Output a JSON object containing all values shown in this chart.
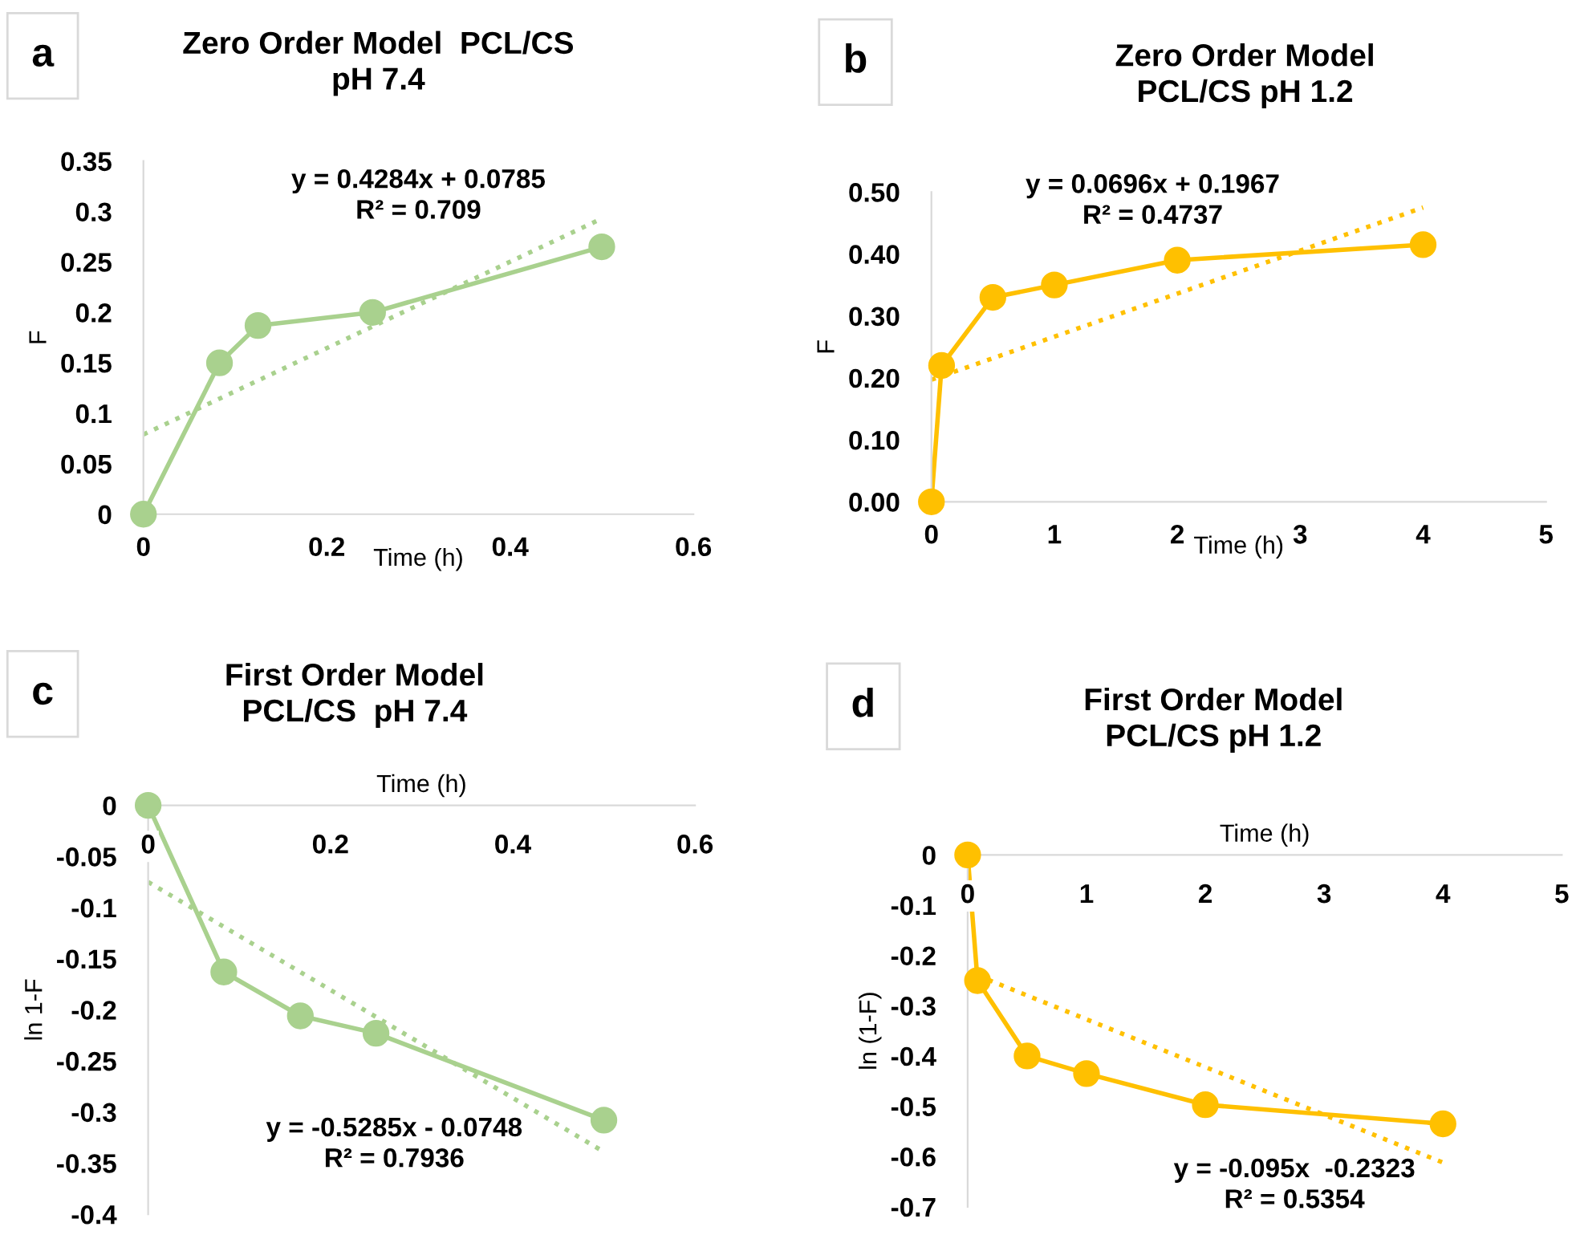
{
  "chart_data": [
    {
      "type": "line",
      "title": "Zero Order Model  PCL/CS\npH 7.4",
      "xlabel": "Time (h)",
      "ylabel": "F",
      "annotations": [
        "a",
        "y = 0.4284x + 0.0785\nR² = 0.709"
      ],
      "x": [
        0,
        0.083,
        0.125,
        0.25,
        0.5
      ],
      "marker": "circle",
      "legend": false,
      "grid": false,
      "series": [
        {
          "color": "#a9d18e",
          "values": [
            0,
            0.15,
            0.187,
            0.2,
            0.265
          ]
        },
        {
          "type": "line",
          "line_style": "dotted",
          "marker": "none",
          "color": "#a9d18e",
          "x": [
            0,
            0.5
          ],
          "values": [
            0.079,
            0.293
          ]
        }
      ],
      "xlim": [
        0,
        0.6
      ],
      "xticks": [
        0,
        0.2,
        0.4,
        0.6
      ],
      "ylim": [
        0,
        0.35
      ],
      "yticks": [
        0,
        0.05,
        0.1,
        0.15,
        0.2,
        0.25,
        0.3,
        0.35
      ]
    },
    {
      "type": "line",
      "title": "Zero Order Model\nPCL/CS pH 1.2",
      "xlabel": "Time (h)",
      "ylabel": "F",
      "annotations": [
        "b",
        "y = 0.0696x + 0.1967\nR² = 0.4737"
      ],
      "x": [
        0,
        0.083,
        0.5,
        1,
        2,
        4
      ],
      "marker": "circle",
      "legend": false,
      "grid": false,
      "series": [
        {
          "color": "#ffc000",
          "values": [
            0,
            0.22,
            0.33,
            0.35,
            0.39,
            0.415
          ]
        },
        {
          "type": "line",
          "line_style": "dotted",
          "marker": "none",
          "color": "#ffc000",
          "x": [
            0,
            4
          ],
          "values": [
            0.197,
            0.475
          ]
        }
      ],
      "xlim": [
        0,
        5
      ],
      "xticks": [
        0,
        1,
        2,
        3,
        4,
        5
      ],
      "ylim": [
        0,
        0.5
      ],
      "yticks": [
        {
          "value": 0,
          "label": "0.00"
        },
        {
          "value": 0.1,
          "label": "0.10"
        },
        {
          "value": 0.2,
          "label": "0.20"
        },
        {
          "value": 0.3,
          "label": "0.30"
        },
        {
          "value": 0.4,
          "label": "0.40"
        },
        {
          "value": 0.5,
          "label": "0.50"
        }
      ]
    },
    {
      "type": "line",
      "title": "First Order Model\nPCL/CS  pH 7.4",
      "xlabel": "Time (h)",
      "ylabel": "ln 1-F",
      "annotations": [
        "c",
        "y = -0.5285x - 0.0748\nR² = 0.7936"
      ],
      "x": [
        0,
        0.083,
        0.167,
        0.25,
        0.5
      ],
      "marker": "circle",
      "legend": false,
      "grid": false,
      "series": [
        {
          "color": "#a9d18e",
          "values": [
            0,
            -0.163,
            -0.206,
            -0.223,
            -0.308
          ]
        },
        {
          "type": "line",
          "line_style": "dotted",
          "marker": "none",
          "color": "#a9d18e",
          "x": [
            0,
            0.5
          ],
          "values": [
            -0.075,
            -0.339
          ]
        }
      ],
      "xlim": [
        0,
        0.6
      ],
      "xticks": [
        0,
        0.2,
        0.4,
        0.6
      ],
      "ylim": [
        -0.4,
        0
      ],
      "yticks": [
        -0.4,
        -0.35,
        -0.3,
        -0.25,
        -0.2,
        -0.15,
        -0.1,
        -0.05,
        0
      ]
    },
    {
      "type": "line",
      "title": "First Order Model\nPCL/CS pH 1.2",
      "xlabel": "Time (h)",
      "ylabel": "ln (1-F)",
      "annotations": [
        "d",
        "y = -0.095x  -0.2323\nR² = 0.5354"
      ],
      "x": [
        0,
        0.083,
        0.5,
        1,
        2,
        4
      ],
      "marker": "circle",
      "legend": false,
      "grid": false,
      "series": [
        {
          "color": "#ffc000",
          "values": [
            0,
            -0.25,
            -0.4,
            -0.435,
            -0.497,
            -0.535
          ]
        },
        {
          "type": "line",
          "line_style": "dotted",
          "marker": "none",
          "color": "#ffc000",
          "x": [
            0.083,
            4
          ],
          "values": [
            -0.24,
            -0.612
          ]
        }
      ],
      "xlim": [
        0,
        5
      ],
      "xticks": [
        0,
        1,
        2,
        3,
        4,
        5
      ],
      "ylim": [
        -0.7,
        0
      ],
      "yticks": [
        -0.7,
        -0.6,
        -0.5,
        -0.4,
        -0.3,
        -0.2,
        -0.1,
        0
      ]
    }
  ]
}
